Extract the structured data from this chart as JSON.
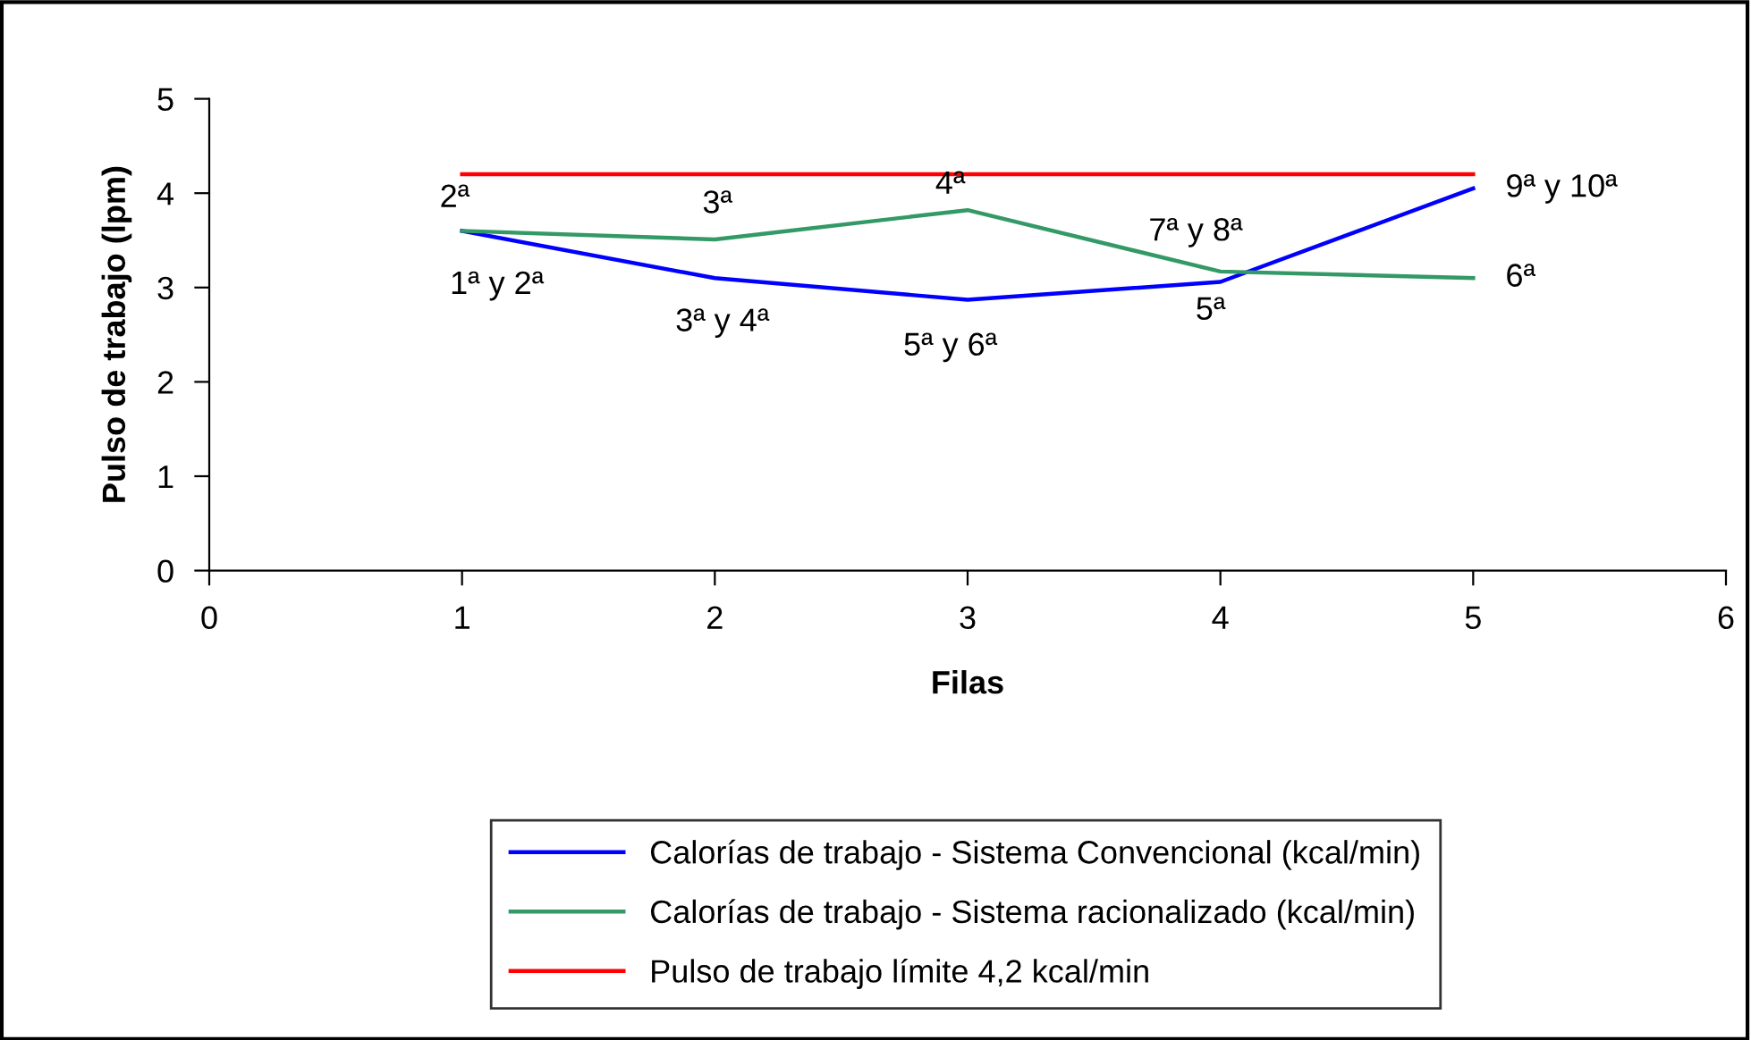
{
  "chart_data": {
    "type": "line",
    "xlabel": "Filas",
    "ylabel": "Pulso de trabajo (lpm)",
    "x": [
      1,
      2,
      3,
      4,
      5
    ],
    "series": [
      {
        "name": "Calorías de trabajo - Sistema Convencional (kcal/min)",
        "color": "#0000ff",
        "values": [
          3.6,
          3.1,
          2.87,
          3.06,
          4.05
        ]
      },
      {
        "name": "Calorías de trabajo - Sistema racionalizado (kcal/min)",
        "color": "#339966",
        "values": [
          3.6,
          3.51,
          3.82,
          3.17,
          3.1
        ]
      },
      {
        "name": "Pulso de trabajo límite 4,2 kcal/min",
        "color": "#ff0000",
        "values": [
          4.2,
          4.2,
          4.2,
          4.2,
          4.2
        ]
      }
    ],
    "annotations": [
      {
        "text": "2ª",
        "x": 1,
        "y": 3.6
      },
      {
        "text": "1ª y 2ª",
        "x": 1,
        "y": 3.6
      },
      {
        "text": "3ª",
        "x": 2,
        "y": 3.51
      },
      {
        "text": "3ª y 4ª",
        "x": 2,
        "y": 3.1
      },
      {
        "text": "4ª",
        "x": 3,
        "y": 3.82
      },
      {
        "text": "5ª y 6ª",
        "x": 3,
        "y": 2.87
      },
      {
        "text": "7ª y 8ª",
        "x": 4,
        "y": 3.06
      },
      {
        "text": "5ª",
        "x": 4,
        "y": 3.17
      },
      {
        "text": "9ª y 10ª",
        "x": 5,
        "y": 4.05
      },
      {
        "text": "6ª",
        "x": 5,
        "y": 3.1
      }
    ],
    "xlim": [
      0,
      6
    ],
    "xticks": [
      0,
      1,
      2,
      3,
      4,
      5,
      6
    ],
    "ylim": [
      0,
      5
    ],
    "yticks": [
      0,
      1,
      2,
      3,
      4,
      5
    ],
    "grid": false,
    "legend": "bottom",
    "marker": "none",
    "line_style": "solid"
  }
}
